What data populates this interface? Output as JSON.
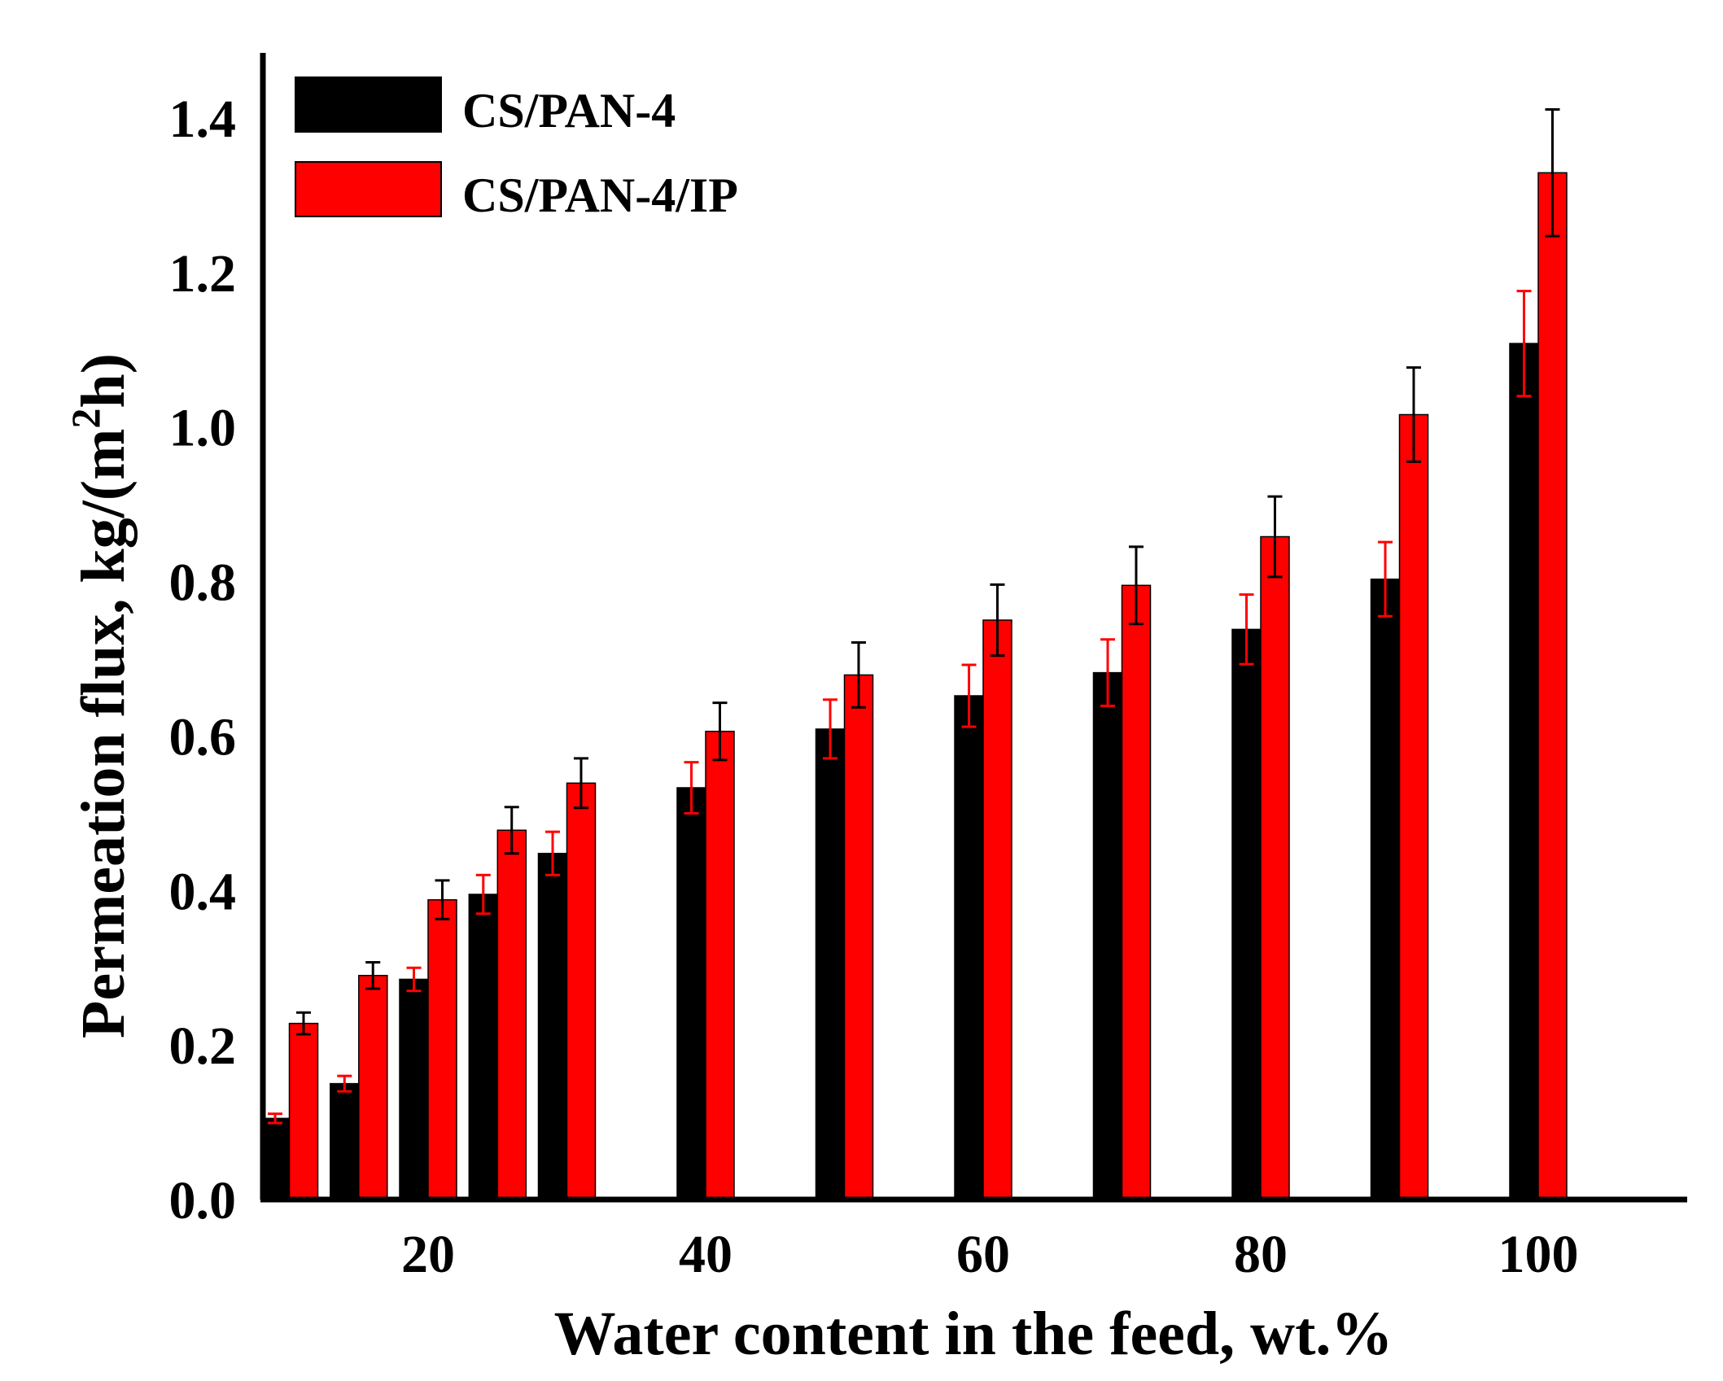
{
  "chart_data": {
    "type": "bar",
    "xlabel": "Water content in the feed, wt.%",
    "ylabel": {
      "main": "Permeation flux, kg/(m",
      "sup": "2",
      "tail": "h)"
    },
    "xlim": [
      8,
      112
    ],
    "ylim": [
      0,
      1.5
    ],
    "x_ticks": [
      20,
      40,
      60,
      80,
      100
    ],
    "y_ticks": [
      "0.0",
      "0.2",
      "0.4",
      "0.6",
      "0.8",
      "1.0",
      "1.2",
      "1.4"
    ],
    "grid": false,
    "legend_position": "top-left",
    "x": [
      10,
      15,
      20,
      25,
      30,
      40,
      50,
      60,
      70,
      80,
      90,
      100
    ],
    "series": [
      {
        "name": "CS/PAN-4",
        "color": "#000000",
        "errorbar_color": "#ff0000",
        "values": [
          0.105,
          0.15,
          0.285,
          0.395,
          0.448,
          0.533,
          0.609,
          0.652,
          0.682,
          0.738,
          0.803,
          1.108
        ],
        "errors": [
          0.006,
          0.01,
          0.015,
          0.025,
          0.028,
          0.033,
          0.038,
          0.04,
          0.043,
          0.045,
          0.048,
          0.068
        ]
      },
      {
        "name": "CS/PAN-4/IP",
        "color": "#ff0000",
        "errorbar_color": "#000000",
        "values": [
          0.228,
          0.29,
          0.388,
          0.478,
          0.539,
          0.606,
          0.679,
          0.75,
          0.795,
          0.858,
          1.016,
          1.329
        ],
        "errors": [
          0.014,
          0.017,
          0.025,
          0.03,
          0.032,
          0.037,
          0.042,
          0.046,
          0.05,
          0.052,
          0.061,
          0.082
        ]
      }
    ]
  }
}
